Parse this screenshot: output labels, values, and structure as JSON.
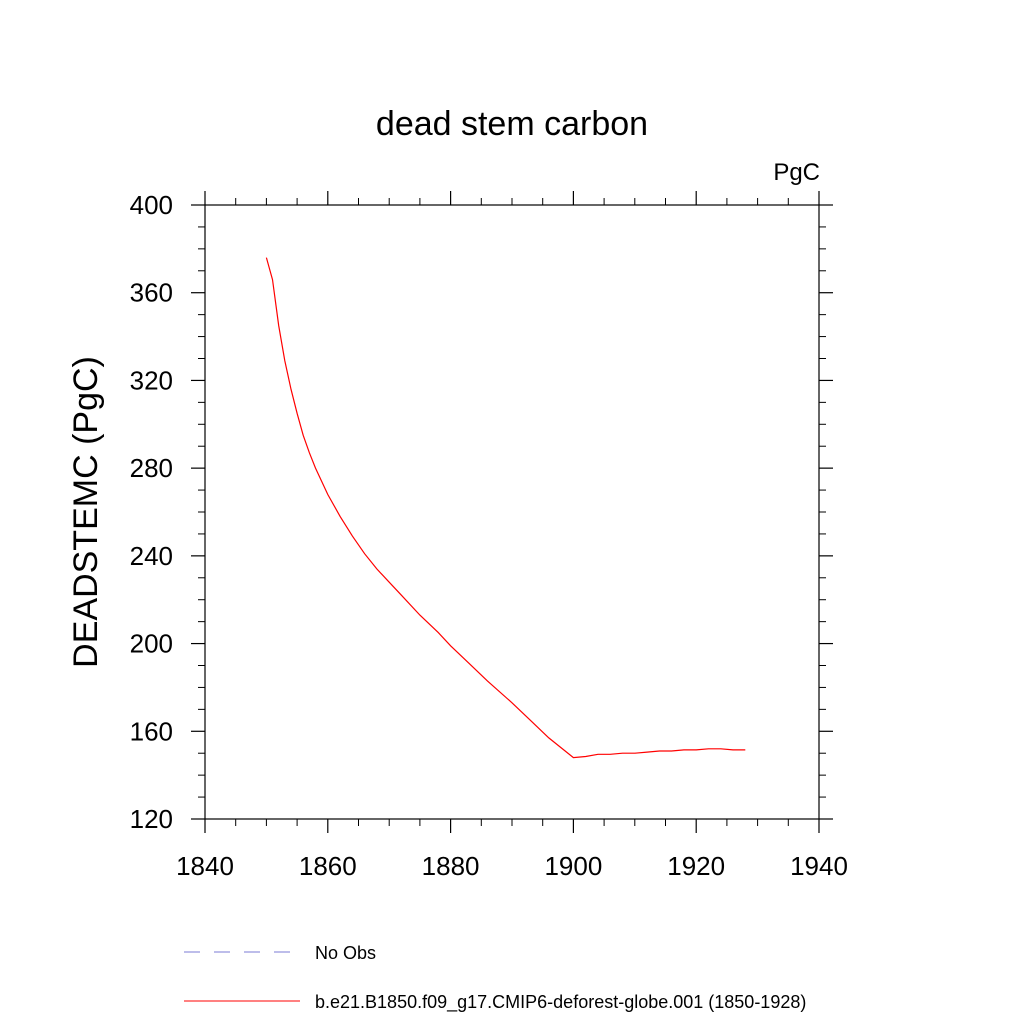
{
  "chart_data": {
    "type": "line",
    "title": "dead stem carbon",
    "units_label": "PgC",
    "xlabel": "",
    "ylabel": "DEADSTEMC  (PgC)",
    "xlim": [
      1840,
      1940
    ],
    "ylim": [
      120,
      400
    ],
    "xticks": [
      1840,
      1860,
      1880,
      1900,
      1920,
      1940
    ],
    "yticks": [
      120,
      160,
      200,
      240,
      280,
      320,
      360,
      400
    ],
    "grid": false,
    "legend_position": "bottom",
    "series": [
      {
        "name": "No Obs",
        "color": "#7b7bd6",
        "dash": "dashed",
        "x": [],
        "y": []
      },
      {
        "name": "b.e21.B1850.f09_g17.CMIP6-deforest-globe.001 (1850-1928)",
        "color": "#ff0000",
        "dash": "solid",
        "x": [
          1850,
          1851,
          1852,
          1853,
          1854,
          1855,
          1856,
          1857,
          1858,
          1860,
          1862,
          1864,
          1866,
          1868,
          1870,
          1872,
          1875,
          1878,
          1880,
          1883,
          1886,
          1890,
          1893,
          1896,
          1900,
          1902,
          1904,
          1906,
          1908,
          1910,
          1912,
          1914,
          1916,
          1918,
          1920,
          1922,
          1924,
          1926,
          1928
        ],
        "y": [
          376,
          366,
          345,
          329,
          316,
          305,
          295,
          287,
          280,
          268,
          258,
          249,
          241,
          234,
          228,
          222,
          213,
          205,
          199,
          191,
          183,
          173,
          165,
          157,
          148,
          148.5,
          149.5,
          149.5,
          150,
          150,
          150.5,
          151,
          151,
          151.5,
          151.5,
          152,
          152,
          151.5,
          151.5
        ]
      }
    ]
  }
}
